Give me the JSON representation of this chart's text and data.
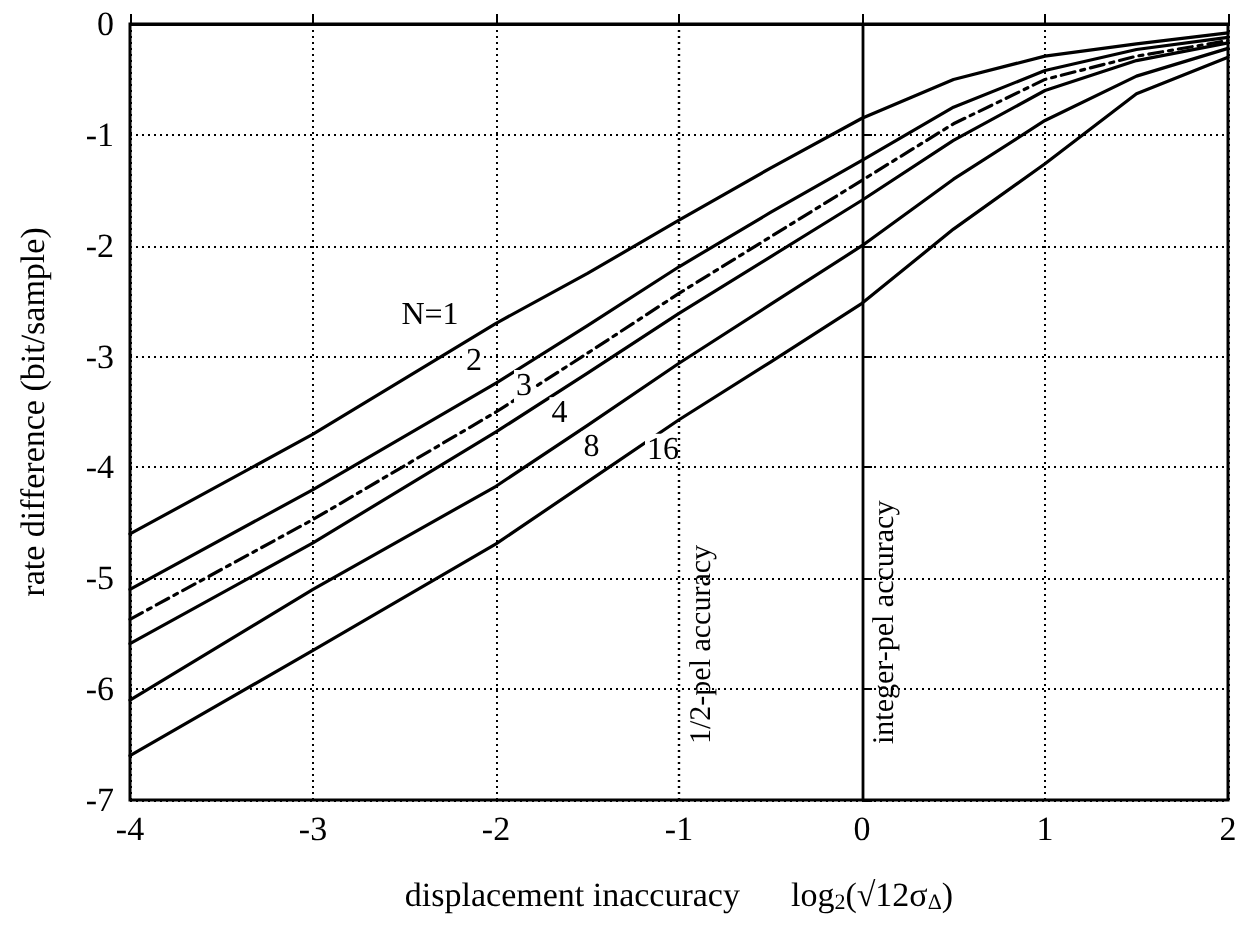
{
  "chart_data": {
    "type": "line",
    "xlabel": "displacement inaccuracy      log$_{2}$(√12σ$_{Δ}$)",
    "ylabel": "rate difference (bit/sample)",
    "x": [
      -4,
      -3,
      -2,
      -1.5,
      -1,
      -0.5,
      0,
      0.5,
      1,
      1.5,
      2
    ],
    "series": [
      {
        "name": "N=1",
        "color": "#000000",
        "values": [
          -4.6,
          -3.7,
          -2.7,
          -2.25,
          -1.77,
          -1.3,
          -0.85,
          -0.5,
          -0.29,
          -0.18,
          -0.08
        ]
      },
      {
        "name": "2",
        "color": "#000000",
        "values": [
          -5.1,
          -4.2,
          -3.24,
          -2.72,
          -2.19,
          -1.7,
          -1.23,
          -0.75,
          -0.42,
          -0.23,
          -0.12
        ]
      },
      {
        "name": "3",
        "color": "#000000",
        "line_style": "dashed",
        "values": [
          -5.37,
          -4.47,
          -3.5,
          -2.97,
          -2.43,
          -1.92,
          -1.41,
          -0.9,
          -0.5,
          -0.29,
          -0.15
        ]
      },
      {
        "name": "4",
        "color": "#000000",
        "values": [
          -5.59,
          -4.68,
          -3.68,
          -3.15,
          -2.61,
          -2.1,
          -1.59,
          -1.05,
          -0.6,
          -0.33,
          -0.17
        ]
      },
      {
        "name": "8",
        "color": "#000000",
        "values": [
          -6.1,
          -5.1,
          -4.17,
          -3.62,
          -3.06,
          -2.53,
          -2.0,
          -1.4,
          -0.87,
          -0.47,
          -0.22
        ]
      },
      {
        "name": "16",
        "color": "#000000",
        "values": [
          -6.6,
          -5.65,
          -4.69,
          -4.13,
          -3.57,
          -3.05,
          -2.52,
          -1.85,
          -1.26,
          -0.63,
          -0.3
        ]
      }
    ],
    "xlim": [
      -4,
      2
    ],
    "xticks": [
      -4,
      -3,
      -2,
      -1,
      0,
      1,
      2
    ],
    "ylim": [
      -7,
      0
    ],
    "yticks": [
      -7,
      -6,
      -5,
      -4,
      -3,
      -2,
      -1,
      0
    ],
    "ref_lines": [
      {
        "axis": "x",
        "value": -1,
        "label": "1/2-pel accuracy",
        "color": "#000000",
        "line_style": "dotted"
      },
      {
        "axis": "x",
        "value": 0,
        "label": "integer-pel accuracy",
        "color": "#000000",
        "line_style": "solid"
      }
    ],
    "grid": true,
    "legend": false,
    "marker": "none",
    "line_style": "solid"
  }
}
